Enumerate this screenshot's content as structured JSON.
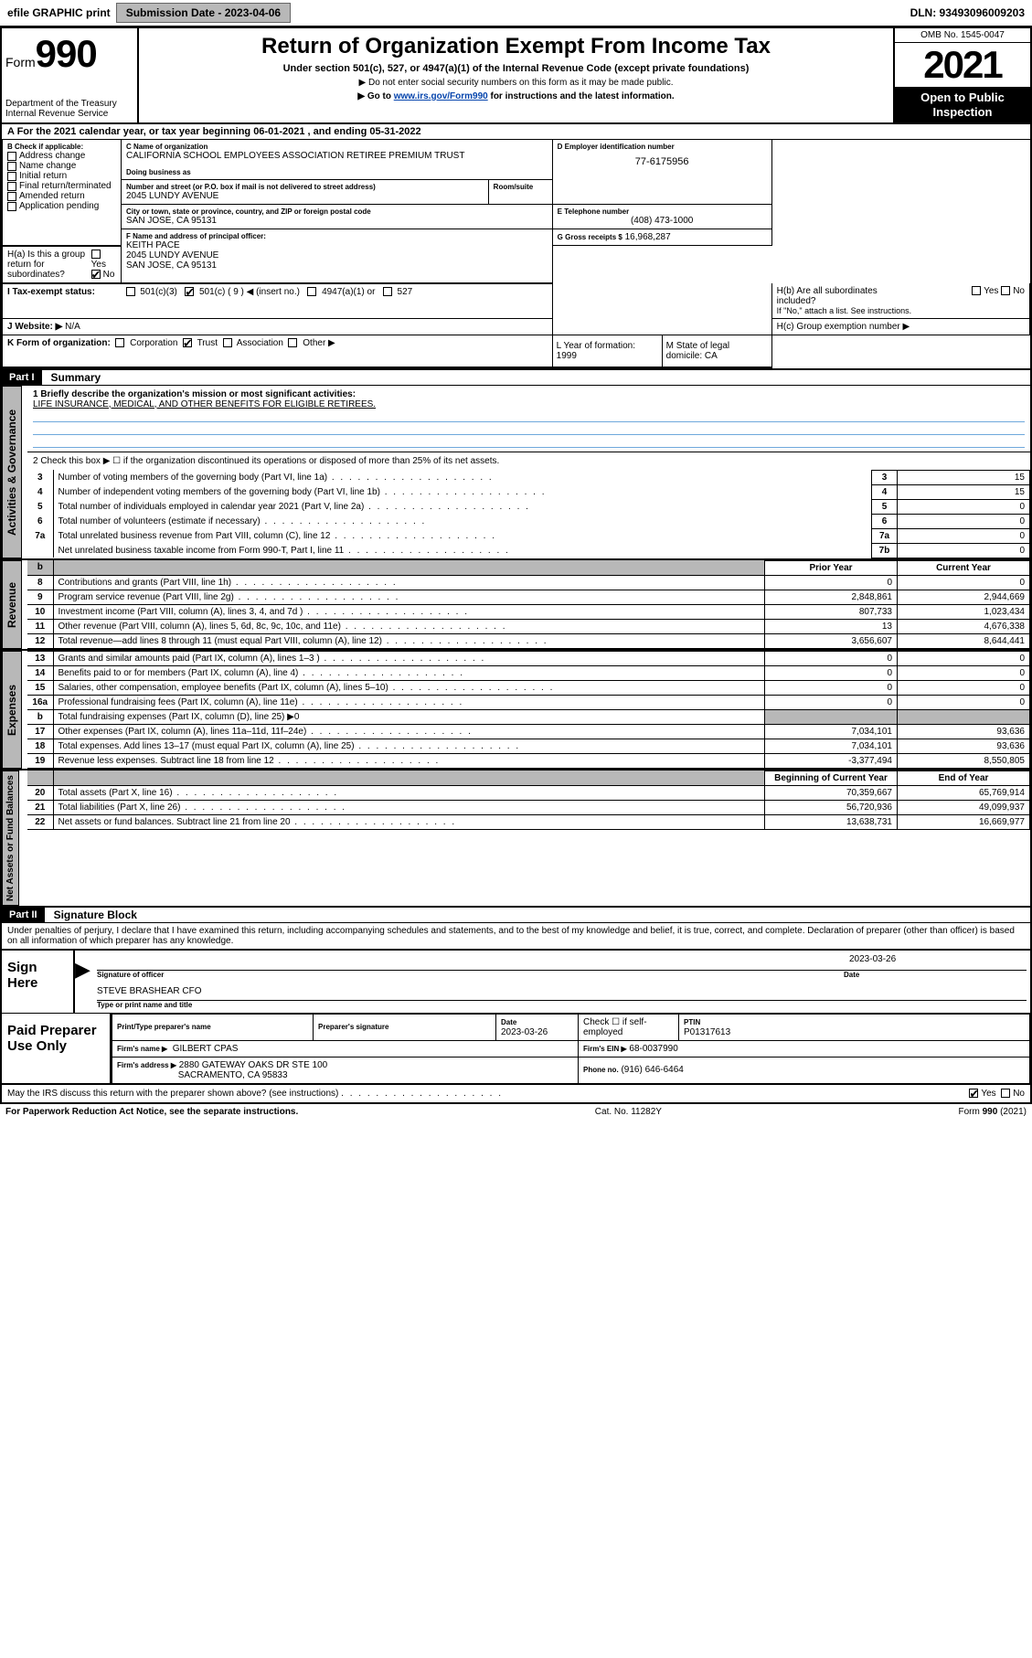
{
  "topbar": {
    "efile": "efile GRAPHIC print",
    "submission_label": "Submission Date - 2023-04-06",
    "dln": "DLN: 93493096009203"
  },
  "header": {
    "form_prefix": "Form",
    "form_num": "990",
    "dept": "Department of the Treasury\nInternal Revenue Service",
    "title": "Return of Organization Exempt From Income Tax",
    "subtitle": "Under section 501(c), 527, or 4947(a)(1) of the Internal Revenue Code (except private foundations)",
    "instr1": "▶ Do not enter social security numbers on this form as it may be made public.",
    "instr2_pre": "▶ Go to ",
    "instr2_link": "www.irs.gov/Form990",
    "instr2_post": " for instructions and the latest information.",
    "omb": "OMB No. 1545-0047",
    "year": "2021",
    "openpub": "Open to Public Inspection"
  },
  "rowA": "A For the 2021 calendar year, or tax year beginning 06-01-2021   , and ending 05-31-2022",
  "B": {
    "label": "B Check if applicable:",
    "items": [
      "Address change",
      "Name change",
      "Initial return",
      "Final return/terminated",
      "Amended return",
      "Application pending"
    ]
  },
  "C": {
    "lbl": "C Name of organization",
    "name": "CALIFORNIA SCHOOL EMPLOYEES ASSOCIATION RETIREE PREMIUM TRUST",
    "dba_lbl": "Doing business as",
    "addr_lbl": "Number and street (or P.O. box if mail is not delivered to street address)",
    "room_lbl": "Room/suite",
    "addr": "2045 LUNDY AVENUE",
    "city_lbl": "City or town, state or province, country, and ZIP or foreign postal code",
    "city": "SAN JOSE, CA  95131"
  },
  "D": {
    "lbl": "D Employer identification number",
    "val": "77-6175956"
  },
  "E": {
    "lbl": "E Telephone number",
    "val": "(408) 473-1000"
  },
  "G": {
    "lbl": "G Gross receipts $",
    "val": "16,968,287"
  },
  "F": {
    "lbl": "F  Name and address of principal officer:",
    "name": "KEITH PACE",
    "addr1": "2045 LUNDY AVENUE",
    "addr2": "SAN JOSE, CA  95131"
  },
  "H": {
    "a": "H(a)  Is this a group return for subordinates?",
    "b": "H(b)  Are all subordinates included?",
    "b_note": "If \"No,\" attach a list. See instructions.",
    "c": "H(c)  Group exemption number ▶",
    "yes": "Yes",
    "no": "No"
  },
  "I": {
    "lbl": "I   Tax-exempt status:",
    "opts": [
      "501(c)(3)",
      "501(c) ( 9 ) ◀ (insert no.)",
      "4947(a)(1) or",
      "527"
    ]
  },
  "J": {
    "lbl": "J   Website: ▶",
    "val": "N/A"
  },
  "K": {
    "lbl": "K Form of organization:",
    "opts": [
      "Corporation",
      "Trust",
      "Association",
      "Other ▶"
    ]
  },
  "L": {
    "lbl": "L Year of formation:",
    "val": "1999"
  },
  "M": {
    "lbl": "M State of legal domicile:",
    "val": "CA"
  },
  "part1": {
    "hdr": "Part I",
    "title": "Summary",
    "line1_lbl": "1  Briefly describe the organization's mission or most significant activities:",
    "line1_val": "LIFE INSURANCE, MEDICAL, AND OTHER BENEFITS FOR ELIGIBLE RETIREES.",
    "line2": "2   Check this box ▶ ☐  if the organization discontinued its operations or disposed of more than 25% of its net assets.",
    "rows_gov": [
      {
        "n": "3",
        "d": "Number of voting members of the governing body (Part VI, line 1a)",
        "k": "3",
        "v": "15"
      },
      {
        "n": "4",
        "d": "Number of independent voting members of the governing body (Part VI, line 1b)",
        "k": "4",
        "v": "15"
      },
      {
        "n": "5",
        "d": "Total number of individuals employed in calendar year 2021 (Part V, line 2a)",
        "k": "5",
        "v": "0"
      },
      {
        "n": "6",
        "d": "Total number of volunteers (estimate if necessary)",
        "k": "6",
        "v": "0"
      },
      {
        "n": "7a",
        "d": "Total unrelated business revenue from Part VIII, column (C), line 12",
        "k": "7a",
        "v": "0"
      },
      {
        "n": "",
        "d": "Net unrelated business taxable income from Form 990-T, Part I, line 11",
        "k": "7b",
        "v": "0"
      }
    ],
    "col_prior": "Prior Year",
    "col_curr": "Current Year",
    "rows_rev": [
      {
        "n": "8",
        "d": "Contributions and grants (Part VIII, line 1h)",
        "p": "0",
        "c": "0"
      },
      {
        "n": "9",
        "d": "Program service revenue (Part VIII, line 2g)",
        "p": "2,848,861",
        "c": "2,944,669"
      },
      {
        "n": "10",
        "d": "Investment income (Part VIII, column (A), lines 3, 4, and 7d )",
        "p": "807,733",
        "c": "1,023,434"
      },
      {
        "n": "11",
        "d": "Other revenue (Part VIII, column (A), lines 5, 6d, 8c, 9c, 10c, and 11e)",
        "p": "13",
        "c": "4,676,338"
      },
      {
        "n": "12",
        "d": "Total revenue—add lines 8 through 11 (must equal Part VIII, column (A), line 12)",
        "p": "3,656,607",
        "c": "8,644,441"
      }
    ],
    "rows_exp": [
      {
        "n": "13",
        "d": "Grants and similar amounts paid (Part IX, column (A), lines 1–3 )",
        "p": "0",
        "c": "0"
      },
      {
        "n": "14",
        "d": "Benefits paid to or for members (Part IX, column (A), line 4)",
        "p": "0",
        "c": "0"
      },
      {
        "n": "15",
        "d": "Salaries, other compensation, employee benefits (Part IX, column (A), lines 5–10)",
        "p": "0",
        "c": "0"
      },
      {
        "n": "16a",
        "d": "Professional fundraising fees (Part IX, column (A), line 11e)",
        "p": "0",
        "c": "0"
      },
      {
        "n": "b",
        "d": "Total fundraising expenses (Part IX, column (D), line 25) ▶0",
        "p": "",
        "c": "",
        "shade": true
      },
      {
        "n": "17",
        "d": "Other expenses (Part IX, column (A), lines 11a–11d, 11f–24e)",
        "p": "7,034,101",
        "c": "93,636"
      },
      {
        "n": "18",
        "d": "Total expenses. Add lines 13–17 (must equal Part IX, column (A), line 25)",
        "p": "7,034,101",
        "c": "93,636"
      },
      {
        "n": "19",
        "d": "Revenue less expenses. Subtract line 18 from line 12",
        "p": "-3,377,494",
        "c": "8,550,805"
      }
    ],
    "col_boy": "Beginning of Current Year",
    "col_eoy": "End of Year",
    "rows_na": [
      {
        "n": "20",
        "d": "Total assets (Part X, line 16)",
        "p": "70,359,667",
        "c": "65,769,914"
      },
      {
        "n": "21",
        "d": "Total liabilities (Part X, line 26)",
        "p": "56,720,936",
        "c": "49,099,937"
      },
      {
        "n": "22",
        "d": "Net assets or fund balances. Subtract line 21 from line 20",
        "p": "13,638,731",
        "c": "16,669,977"
      }
    ]
  },
  "part2": {
    "hdr": "Part II",
    "title": "Signature Block",
    "decl": "Under penalties of perjury, I declare that I have examined this return, including accompanying schedules and statements, and to the best of my knowledge and belief, it is true, correct, and complete. Declaration of preparer (other than officer) is based on all information of which preparer has any knowledge.",
    "sign_here": "Sign Here",
    "sig_off": "Signature of officer",
    "date_lbl": "Date",
    "date": "2023-03-26",
    "officer": "STEVE BRASHEAR  CFO",
    "type_name": "Type or print name and title",
    "paid": "Paid Preparer Use Only",
    "prep_name": "Print/Type preparer's name",
    "prep_sig": "Preparer's signature",
    "prep_date_lbl": "Date",
    "prep_date": "2023-03-26",
    "self_emp": "Check ☐ if self-employed",
    "ptin_lbl": "PTIN",
    "ptin": "P01317613",
    "firm_lbl": "Firm's name   ▶",
    "firm": "GILBERT CPAS",
    "firm_ein_lbl": "Firm's EIN ▶",
    "firm_ein": "68-0037990",
    "firm_addr_lbl": "Firm's address ▶",
    "firm_addr1": "2880 GATEWAY OAKS DR STE 100",
    "firm_addr2": "SACRAMENTO, CA 95833",
    "phone_lbl": "Phone no.",
    "phone": "(916) 646-6464",
    "discuss": "May the IRS discuss this return with the preparer shown above? (see instructions)"
  },
  "footer": {
    "left": "For Paperwork Reduction Act Notice, see the separate instructions.",
    "mid": "Cat. No. 11282Y",
    "right": "Form 990 (2021)"
  },
  "vtabs": {
    "gov": "Activities & Governance",
    "rev": "Revenue",
    "exp": "Expenses",
    "na": "Net Assets or Fund Balances"
  }
}
